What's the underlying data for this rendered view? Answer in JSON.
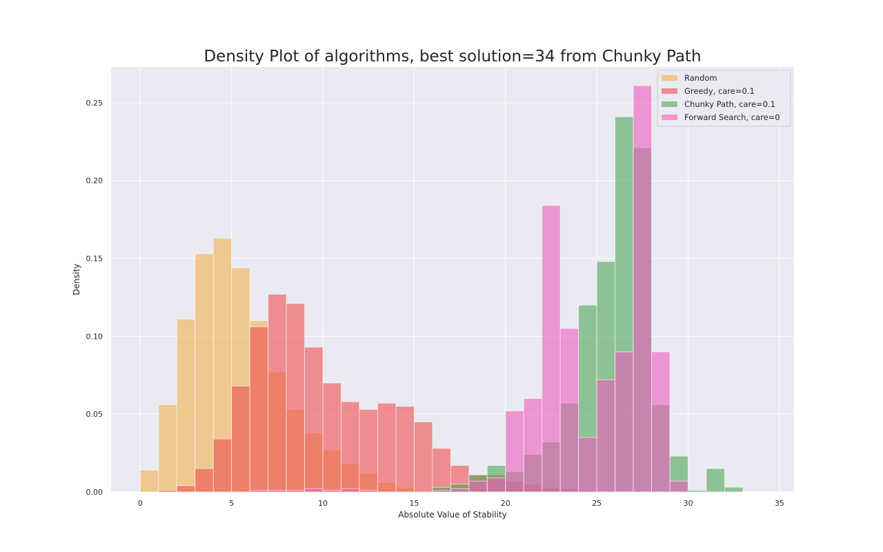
{
  "chart_data": {
    "type": "histogram",
    "title": "Density Plot of algorithms, best solution=34         from Chunky Path",
    "xlabel": "Absolute Value of Stability",
    "ylabel": "Density",
    "xlim": [
      -1.6,
      35.8
    ],
    "ylim": [
      0,
      0.273
    ],
    "xticks": [
      0,
      5,
      10,
      15,
      20,
      25,
      30,
      35
    ],
    "yticks": [
      0.0,
      0.05,
      0.1,
      0.15,
      0.2,
      0.25
    ],
    "ytick_labels": [
      "0.00",
      "0.05",
      "0.10",
      "0.15",
      "0.20",
      "0.25"
    ],
    "grid": true,
    "legend_position": "top-right",
    "bin_edges": [
      0,
      1,
      2,
      3,
      4,
      5,
      6,
      7,
      8,
      9,
      10,
      11,
      12,
      13,
      14,
      15,
      16,
      17,
      18,
      19,
      20,
      21,
      22,
      23,
      24,
      25,
      26,
      27,
      28,
      29,
      30,
      31,
      32,
      33,
      34
    ],
    "series": [
      {
        "name": "Random",
        "color": "#f0b14d",
        "values": [
          0.014,
          0.056,
          0.111,
          0.153,
          0.163,
          0.144,
          0.11,
          0.077,
          0.053,
          0.038,
          0.027,
          0.018,
          0.012,
          0.006,
          0.003,
          0.001,
          0,
          0,
          0,
          0,
          0,
          0,
          0,
          0,
          0,
          0,
          0,
          0,
          0,
          0,
          0,
          0,
          0,
          0
        ]
      },
      {
        "name": "Greedy, care=0.1",
        "color": "#ee4e50",
        "values": [
          0,
          0.001,
          0.004,
          0.015,
          0.034,
          0.068,
          0.106,
          0.127,
          0.121,
          0.093,
          0.07,
          0.058,
          0.053,
          0.057,
          0.055,
          0.045,
          0.028,
          0.017,
          0.011,
          0.011,
          0.007,
          0.005,
          0.003,
          0.002,
          0.001,
          0,
          0,
          0,
          0,
          0,
          0,
          0,
          0,
          0
        ]
      },
      {
        "name": "Chunky Path, care=0.1",
        "color": "#4fa75a",
        "values": [
          0,
          0,
          0,
          0,
          0,
          0,
          0,
          0,
          0,
          0,
          0,
          0,
          0,
          0,
          0,
          0,
          0.003,
          0.005,
          0.011,
          0.017,
          0.013,
          0.024,
          0.032,
          0.057,
          0.12,
          0.148,
          0.241,
          0.221,
          0.056,
          0.023,
          0.001,
          0.015,
          0.003,
          0
        ]
      },
      {
        "name": "Forward Search, care=0",
        "color": "#ee5cbc",
        "values": [
          0,
          0,
          0,
          0,
          0,
          0,
          0.001,
          0.001,
          0.001,
          0.002,
          0.001,
          0.002,
          0.001,
          0,
          0,
          0,
          0.001,
          0.002,
          0.007,
          0.009,
          0.052,
          0.06,
          0.184,
          0.105,
          0.035,
          0.072,
          0.09,
          0.261,
          0.09,
          0.007,
          0,
          0,
          0,
          0
        ]
      }
    ]
  }
}
